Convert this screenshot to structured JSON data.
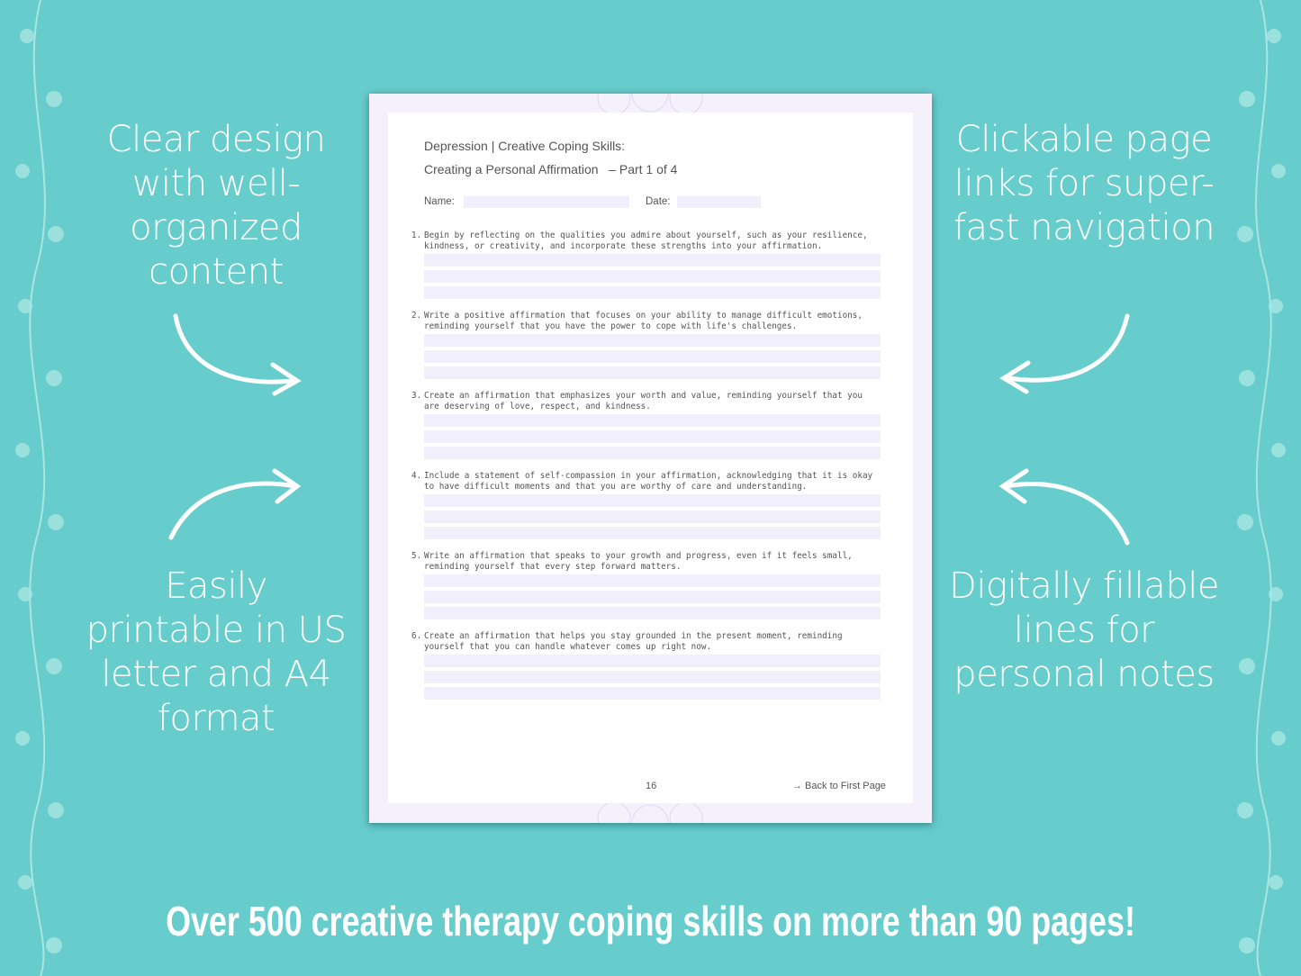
{
  "left_top_text": "Clear design with well-organized content",
  "left_bottom_text": "Easily printable in US letter and A4 format",
  "right_top_text": "Clickable page links for super-fast navigation",
  "right_bottom_text": "Digitally fillable lines for personal notes",
  "banner": "Over 500 creative therapy coping skills on more than 90 pages!",
  "document": {
    "title_line1": "Depression | Creative Coping Skills:",
    "title_line2": "Creating a Personal Affirmation   – Part 1 of 4",
    "name_label": "Name:",
    "date_label": "Date:",
    "questions": [
      {
        "num": "1.",
        "text": "Begin by reflecting on the qualities you admire about yourself, such as your resilience,\nkindness, or creativity, and incorporate these strengths into your affirmation."
      },
      {
        "num": "2.",
        "text": "Write a positive affirmation that focuses on your ability to manage difficult emotions,\nreminding yourself that you have the power to cope with life's challenges."
      },
      {
        "num": "3.",
        "text": "Create an affirmation that emphasizes your worth and value, reminding yourself that you\nare deserving of love, respect, and kindness."
      },
      {
        "num": "4.",
        "text": "Include a statement of self-compassion in your affirmation, acknowledging that it is okay\nto have difficult moments and that you are worthy of care and understanding."
      },
      {
        "num": "5.",
        "text": "Write an affirmation that speaks to your growth and progress, even if it feels small,\nreminding yourself that every step forward matters."
      },
      {
        "num": "6.",
        "text": "Create an affirmation that helps you stay grounded in the present moment, reminding\nyourself that you can handle whatever comes up right now."
      }
    ],
    "page_number": "16",
    "back_link": "→ Back to First Page"
  },
  "colors": {
    "background": "#66cccc",
    "field": "#f1effc",
    "page_border": "#f4f1fd"
  }
}
